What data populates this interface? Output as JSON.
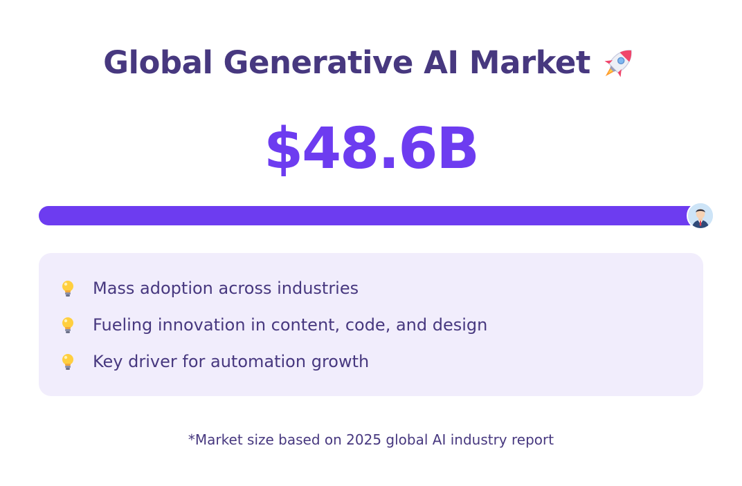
{
  "header": {
    "title": "Global Generative AI Market",
    "title_icon": "rocket-icon"
  },
  "metric": {
    "value": "$48.6B"
  },
  "progress": {
    "fraction": 1.0,
    "marker_icon": "person-avatar-icon",
    "fill_color": "#6d3cf0",
    "track_color": "#e6defb"
  },
  "highlights": {
    "bullet_icon": "lightbulb-icon",
    "items": [
      {
        "text": "Mass adoption across industries"
      },
      {
        "text": "Fueling innovation in content, code, and design"
      },
      {
        "text": "Key driver for automation growth"
      }
    ]
  },
  "footnote": {
    "text": "*Market size based on 2025 global AI industry report"
  },
  "colors": {
    "title": "#47387f",
    "accent": "#6d3cf0",
    "panel_background": "#f1edfc",
    "body_text": "#47387f"
  }
}
